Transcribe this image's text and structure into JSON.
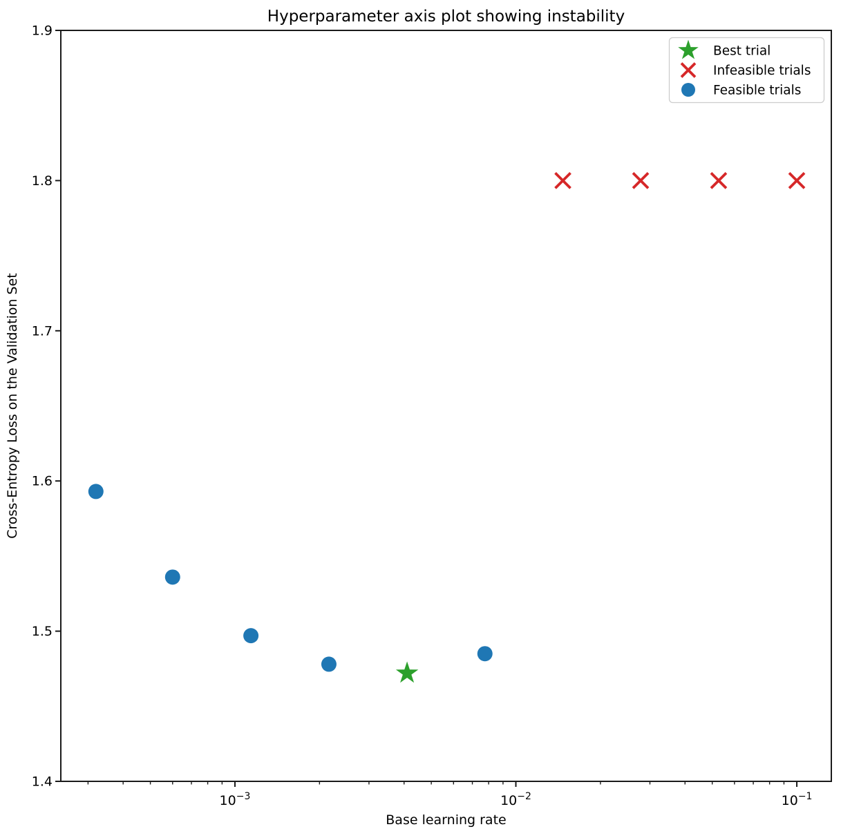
{
  "chart_data": {
    "type": "scatter",
    "title": "Hyperparameter axis plot showing instability",
    "xlabel": "Base learning rate",
    "ylabel": "Cross-Entropy Loss on the Validation Set",
    "x_scale": "log",
    "xlim": [
      0.00024,
      0.1327
    ],
    "ylim": [
      1.4,
      1.9
    ],
    "y_ticks": [
      1.4,
      1.5,
      1.6,
      1.7,
      1.8,
      1.9
    ],
    "x_major_ticks": [
      0.001,
      0.01,
      0.1
    ],
    "x_major_tick_exponents": [
      "−3",
      "−2",
      "−1"
    ],
    "x_tick_base": "10",
    "grid": false,
    "legend_position": "upper right",
    "series": [
      {
        "name": "Best trial",
        "marker": "star",
        "color": "#2ca02c",
        "points": [
          {
            "x": 0.0041,
            "y": 1.472
          }
        ]
      },
      {
        "name": "Infeasible trials",
        "marker": "x",
        "color": "#d62728",
        "points": [
          {
            "x": 0.0147,
            "y": 1.8
          },
          {
            "x": 0.0278,
            "y": 1.8
          },
          {
            "x": 0.0527,
            "y": 1.8
          },
          {
            "x": 0.1,
            "y": 1.8
          }
        ]
      },
      {
        "name": "Feasible trials",
        "marker": "circle",
        "color": "#1f77b4",
        "points": [
          {
            "x": 0.00032,
            "y": 1.593
          },
          {
            "x": 0.0006,
            "y": 1.536
          },
          {
            "x": 0.00114,
            "y": 1.497
          },
          {
            "x": 0.00216,
            "y": 1.478
          },
          {
            "x": 0.00776,
            "y": 1.485
          }
        ]
      }
    ],
    "spine_color": "#1a1a1a",
    "background_color": "#ffffff",
    "legend_border_color": "#cccccc"
  }
}
